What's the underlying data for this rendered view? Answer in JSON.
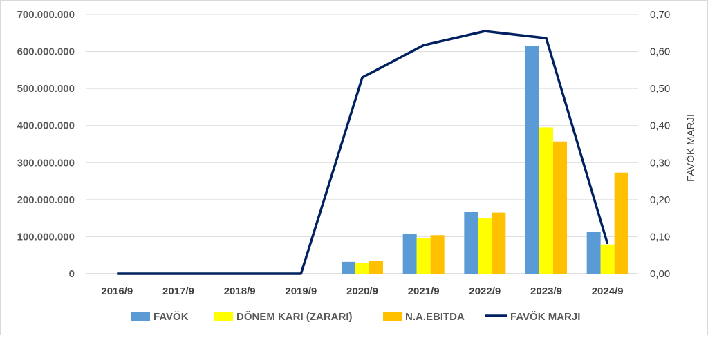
{
  "chart_data": {
    "type": "bar",
    "categories": [
      "2016/9",
      "2017/9",
      "2018/9",
      "2019/9",
      "2020/9",
      "2021/9",
      "2022/9",
      "2023/9",
      "2024/9"
    ],
    "series": [
      {
        "name": "FAVÖK",
        "type": "bar",
        "axis": "left",
        "color": "#5b9bd5",
        "values": [
          0,
          0,
          0,
          0,
          32000000,
          108000000,
          167000000,
          615000000,
          113000000
        ]
      },
      {
        "name": "DÖNEM KARI (ZARARI)",
        "type": "bar",
        "axis": "left",
        "color": "#ffff00",
        "values": [
          0,
          0,
          0,
          0,
          29000000,
          97000000,
          150000000,
          395000000,
          79000000
        ]
      },
      {
        "name": "N.A.EBITDA",
        "type": "bar",
        "axis": "left",
        "color": "#ffc000",
        "values": [
          0,
          0,
          0,
          0,
          35000000,
          104000000,
          165000000,
          357000000,
          273000000
        ]
      },
      {
        "name": "FAVÖK MARJI",
        "type": "line",
        "axis": "right",
        "color": "#002060",
        "values": [
          0,
          0,
          0,
          0,
          0.53,
          0.617,
          0.655,
          0.636,
          0.081
        ]
      }
    ],
    "y_left": {
      "min": 0,
      "max": 700000000,
      "ticks": [
        0,
        100000000,
        200000000,
        300000000,
        400000000,
        500000000,
        600000000,
        700000000
      ],
      "tick_labels": [
        "0",
        "100.000.000",
        "200.000.000",
        "300.000.000",
        "400.000.000",
        "500.000.000",
        "600.000.000",
        "700.000.000"
      ]
    },
    "y_right": {
      "label": "FAVÖK MARJI",
      "min": 0,
      "max": 0.7,
      "ticks": [
        0,
        0.1,
        0.2,
        0.3,
        0.4,
        0.5,
        0.6,
        0.7
      ],
      "tick_labels": [
        "0,00",
        "0,10",
        "0,20",
        "0,30",
        "0,40",
        "0,50",
        "0,60",
        "0,70"
      ]
    },
    "grid": true,
    "legend": "bottom",
    "legend_labels": [
      "FAVÖK",
      "DÖNEM KARI (ZARARI)",
      "N.A.EBITDA",
      "FAVÖK MARJI"
    ]
  }
}
